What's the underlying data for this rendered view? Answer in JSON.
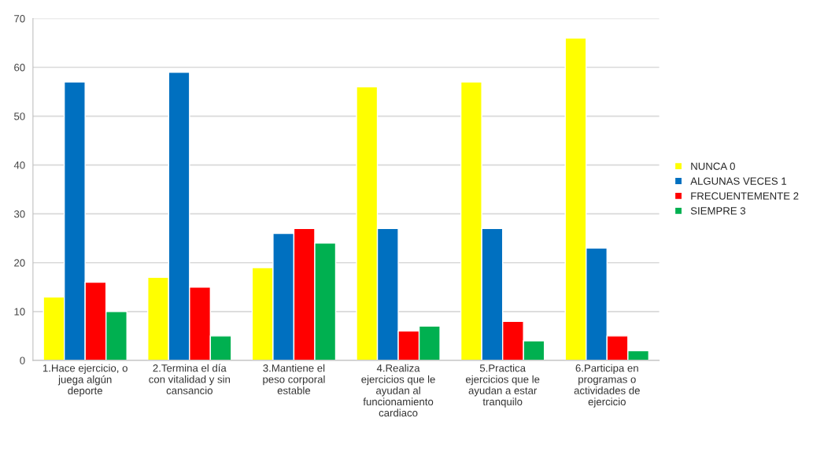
{
  "chart_data": {
    "type": "bar",
    "categories": [
      "1.Hace ejercicio, o\njuega algún\ndeporte",
      "2.Termina el día\ncon vitalidad y sin\ncansancio",
      "3.Mantiene el\npeso corporal\nestable",
      "4.Realiza\nejercicios que le\nayudan al\nfuncionamiento\ncardiaco",
      "5.Practica\nejercicios que le\nayudan a estar\ntranquilo",
      "6.Participa en\nprogramas o\nactividades de\nejercicio"
    ],
    "series": [
      {
        "name": "NUNCA 0",
        "color": "#ffff00",
        "values": [
          13,
          17,
          19,
          56,
          57,
          66
        ]
      },
      {
        "name": "ALGUNAS VECES 1",
        "color": "#0070c0",
        "values": [
          57,
          59,
          26,
          27,
          27,
          23
        ]
      },
      {
        "name": "FRECUENTEMENTE 2",
        "color": "#ff0000",
        "values": [
          16,
          15,
          27,
          6,
          8,
          5
        ]
      },
      {
        "name": "SIEMPRE 3",
        "color": "#00b050",
        "values": [
          10,
          5,
          24,
          7,
          4,
          2
        ]
      }
    ],
    "ylim": [
      0,
      70
    ],
    "yticks": [
      0,
      10,
      20,
      30,
      40,
      50,
      60,
      70
    ],
    "grid": "y",
    "legend": "right"
  }
}
